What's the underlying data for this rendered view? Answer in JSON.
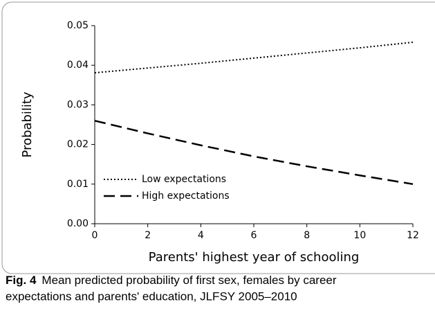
{
  "chart_data": {
    "type": "line",
    "xlabel": "Parents' highest year of schooling",
    "ylabel": "Probability",
    "x": [
      0,
      2,
      4,
      6,
      8,
      10,
      12
    ],
    "series": [
      {
        "name": "Low expectations",
        "color": "#000000",
        "dash": "dotted",
        "values": [
          0.0381,
          0.0393,
          0.0405,
          0.0418,
          0.0431,
          0.0444,
          0.0458
        ]
      },
      {
        "name": "High expectations",
        "color": "#000000",
        "dash": "dashed",
        "values": [
          0.026,
          0.0228,
          0.0198,
          0.017,
          0.0145,
          0.0122,
          0.01
        ]
      }
    ],
    "xlim": [
      0,
      12
    ],
    "xticks": [
      0,
      2,
      4,
      6,
      8,
      10,
      12
    ],
    "ylim": [
      0,
      0.05
    ],
    "yticks": [
      {
        "value": 0,
        "label": "0.00"
      },
      {
        "value": 0.01,
        "label": "0.01"
      },
      {
        "value": 0.02,
        "label": "0.02"
      },
      {
        "value": 0.03,
        "label": "0.03"
      },
      {
        "value": 0.04,
        "label": "0.04"
      },
      {
        "value": 0.05,
        "label": "0.05"
      }
    ],
    "legend": "lower left",
    "caption_label": "Fig. 4",
    "caption_lines": [
      "Mean predicted probability of first sex, females by career",
      "expectations and parents' education, JLFSY 2005–2010"
    ]
  }
}
